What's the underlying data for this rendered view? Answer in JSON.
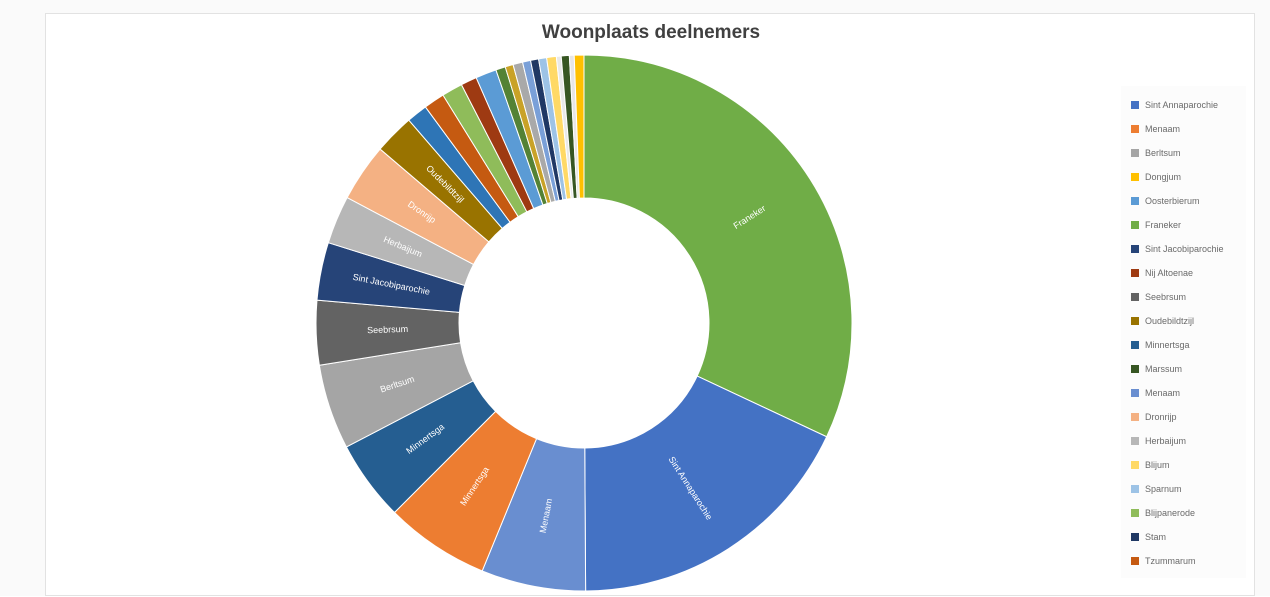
{
  "chart_data": {
    "type": "pie",
    "variant": "donut",
    "title": "Woonplaats deelnemers",
    "legend_position": "right",
    "slices": [
      {
        "label": "Franeker",
        "value": 33.0,
        "color": "#70ad47"
      },
      {
        "label": "Sint Annaparochie",
        "value": 18.5,
        "color": "#4472c4"
      },
      {
        "label": "Menaam",
        "value": 6.5,
        "color": "#698ed0"
      },
      {
        "label": "Minnertsga",
        "value": 6.5,
        "color": "#ed7d31"
      },
      {
        "label": "Minnertsga",
        "value": 5.0,
        "color": "#255e91"
      },
      {
        "label": "Berltsum",
        "value": 5.3,
        "color": "#a5a5a5"
      },
      {
        "label": "Seebrsum",
        "value": 4.0,
        "color": "#636363"
      },
      {
        "label": "Sint Jacobiparochie",
        "value": 3.6,
        "color": "#264478"
      },
      {
        "label": "Herbaijum",
        "value": 3.0,
        "color": "#b7b7b7"
      },
      {
        "label": "Dronrijp",
        "value": 3.6,
        "color": "#f4b183"
      },
      {
        "label": "Oudebildtzijl",
        "value": 2.5,
        "color": "#997300"
      },
      {
        "label": "",
        "value": 1.3,
        "color": "#2e75b6"
      },
      {
        "label": "",
        "value": 1.3,
        "color": "#c55a11"
      },
      {
        "label": "",
        "value": 1.3,
        "color": "#8fbc5a"
      },
      {
        "label": "",
        "value": 1.0,
        "color": "#9e3a12"
      },
      {
        "label": "",
        "value": 1.3,
        "color": "#5b9bd5"
      },
      {
        "label": "",
        "value": 0.6,
        "color": "#548235"
      },
      {
        "label": "",
        "value": 0.5,
        "color": "#c9a227"
      },
      {
        "label": "",
        "value": 0.6,
        "color": "#a9a9a9"
      },
      {
        "label": "",
        "value": 0.5,
        "color": "#7aa0d8"
      },
      {
        "label": "",
        "value": 0.5,
        "color": "#203864"
      },
      {
        "label": "",
        "value": 0.5,
        "color": "#9dc3e6"
      },
      {
        "label": "",
        "value": 0.6,
        "color": "#ffd966"
      },
      {
        "label": "",
        "value": 0.3,
        "color": "#e9e9e9"
      },
      {
        "label": "",
        "value": 0.5,
        "color": "#375623"
      },
      {
        "label": "",
        "value": 0.3,
        "color": "#e7e6e6"
      },
      {
        "label": "",
        "value": 0.6,
        "color": "#ffc000"
      }
    ],
    "legend": [
      {
        "label": "Sint Annaparochie",
        "color": "#4472c4"
      },
      {
        "label": "Menaam",
        "color": "#ed7d31"
      },
      {
        "label": "Berltsum",
        "color": "#a5a5a5"
      },
      {
        "label": "Dongjum",
        "color": "#ffc000"
      },
      {
        "label": "Oosterbierum",
        "color": "#5b9bd5"
      },
      {
        "label": "Franeker",
        "color": "#70ad47"
      },
      {
        "label": "Sint Jacobiparochie",
        "color": "#264478"
      },
      {
        "label": "Nij Altoenae",
        "color": "#9e3a12"
      },
      {
        "label": "Seebrsum",
        "color": "#636363"
      },
      {
        "label": "Oudebildtzijl",
        "color": "#997300"
      },
      {
        "label": "Minnertsga",
        "color": "#255e91"
      },
      {
        "label": "Marssum",
        "color": "#375623"
      },
      {
        "label": "Menaam",
        "color": "#698ed0"
      },
      {
        "label": "Dronrijp",
        "color": "#f4b183"
      },
      {
        "label": "Herbaijum",
        "color": "#b7b7b7"
      },
      {
        "label": "Blijum",
        "color": "#ffd966"
      },
      {
        "label": "Sparnum",
        "color": "#9dc3e6"
      },
      {
        "label": "Blijpanerode",
        "color": "#8fbc5a"
      },
      {
        "label": "Stam",
        "color": "#203864"
      },
      {
        "label": "Tzummarum",
        "color": "#c55a11"
      }
    ]
  }
}
